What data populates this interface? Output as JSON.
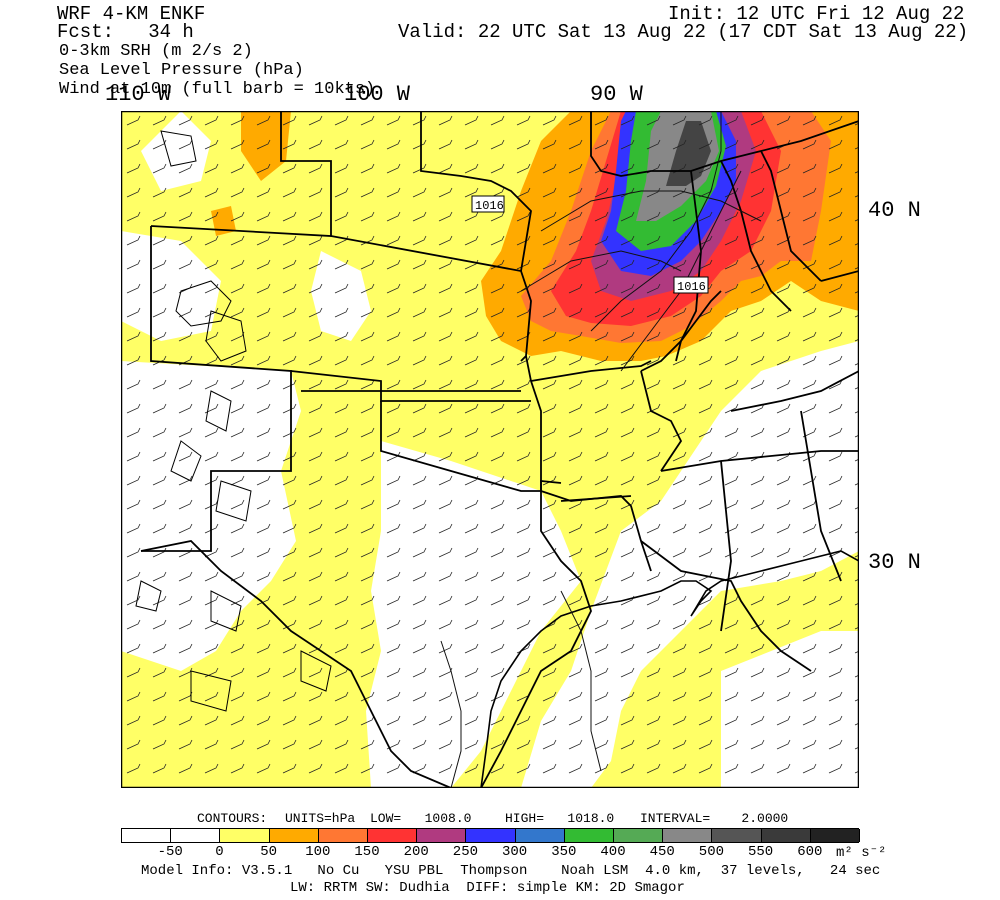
{
  "header": {
    "model": "WRF 4-KM ENKF",
    "fcst": "Fcst:   34 h",
    "init": "Init: 12 UTC Fri 12 Aug 22",
    "valid": "Valid: 22 UTC Sat 13 Aug 22 (17 CDT Sat 13 Aug 22)",
    "fields": [
      "0-3km SRH (m 2/s 2)",
      "Sea Level Pressure (hPa)",
      "Wind at 10m (full barb = 10kts)"
    ]
  },
  "axes": {
    "lon_labels": [
      "110 W",
      "100 W",
      "90 W"
    ],
    "lat_labels": [
      "40 N",
      "30 N"
    ]
  },
  "map": {
    "isobar_labels": [
      "1016",
      "1016"
    ],
    "colors": {
      "yellow": "#ffff66",
      "orange": "#ffaa00",
      "border": "#000000"
    }
  },
  "contour_info": {
    "contours": "CONTOURS:",
    "units": "UNITS=hPa",
    "low": "LOW=   1008.0",
    "high": "HIGH=   1018.0",
    "interval": "INTERVAL=    2.0000"
  },
  "colorbar": {
    "colors": [
      "#ffffff",
      "#ffffff",
      "#ffff66",
      "#ffaa00",
      "#ff7733",
      "#ff3333",
      "#b03a80",
      "#3333ff",
      "#3377cc",
      "#33bb33",
      "#55aa55",
      "#888888",
      "#555555",
      "#3a3a3a",
      "#222222"
    ],
    "labels": [
      "-50",
      "0",
      "50",
      "100",
      "150",
      "200",
      "250",
      "300",
      "350",
      "400",
      "450",
      "500",
      "550",
      "600"
    ],
    "units": "m² s⁻²"
  },
  "footer": {
    "line1": "Model Info: V3.5.1   No Cu   YSU PBL  Thompson    Noah LSM  4.0 km,  37 levels,   24 sec",
    "line2": "LW: RRTM SW: Dudhia  DIFF: simple KM: 2D Smagor"
  }
}
